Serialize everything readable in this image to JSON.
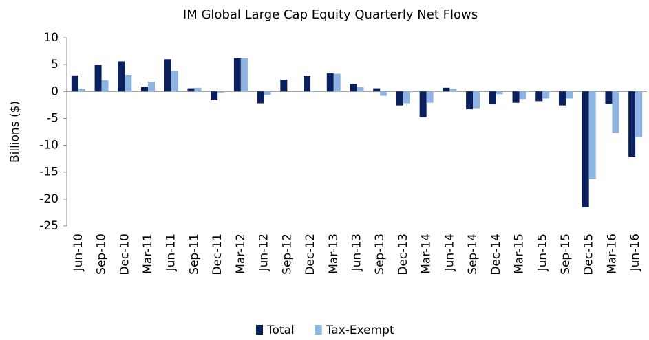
{
  "chart_data": {
    "type": "bar",
    "title": "IM Global Large Cap Equity Quarterly Net Flows",
    "y_label": "Billions ($)",
    "categories": [
      "Jun-10",
      "Sep-10",
      "Dec-10",
      "Mar-11",
      "Jun-11",
      "Sep-11",
      "Dec-11",
      "Mar-12",
      "Jun-12",
      "Sep-12",
      "Dec-12",
      "Mar-13",
      "Jun-13",
      "Sep-13",
      "Dec-13",
      "Mar-14",
      "Jun-14",
      "Sep-14",
      "Dec-14",
      "Mar-15",
      "Jun-15",
      "Sep-15",
      "Dec-15",
      "Mar-16",
      "Jun-16"
    ],
    "series": [
      {
        "name": "Total",
        "color": "#0a1f5c",
        "values": [
          3.0,
          5.0,
          5.6,
          0.9,
          6.0,
          0.6,
          -1.6,
          6.2,
          -2.2,
          2.2,
          2.9,
          3.4,
          1.4,
          0.6,
          -2.6,
          -4.8,
          0.7,
          -3.3,
          -2.4,
          -2.1,
          -1.8,
          -2.6,
          -21.5,
          -2.3,
          -12.2
        ]
      },
      {
        "name": "Tax-Exempt",
        "color": "#8db4e2",
        "values": [
          0.5,
          2.1,
          3.1,
          1.8,
          3.8,
          0.7,
          -0.2,
          6.2,
          -0.6,
          0,
          0.1,
          3.3,
          0.8,
          -0.8,
          -2.2,
          -2.1,
          0.5,
          -3.1,
          -0.5,
          -1.4,
          -1.3,
          -1.3,
          -16.3,
          -7.7,
          -8.5
        ]
      }
    ],
    "ylim": [
      -25,
      10
    ],
    "yticks": [
      -25,
      -20,
      -15,
      -10,
      -5,
      0,
      5,
      10
    ],
    "legend": "bottom"
  }
}
